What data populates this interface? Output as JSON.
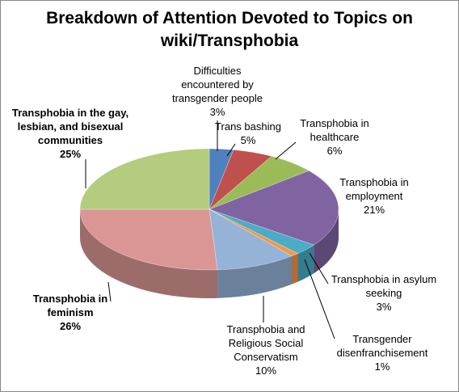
{
  "chart_data": {
    "type": "pie3d",
    "title": "Breakdown of Attention Devoted to Topics on wiki/Transphobia",
    "categories": [
      "Difficulties encountered by transgender people",
      "Trans bashing",
      "Transphobia in healthcare",
      "Transphobia in employment",
      "Transphobia in asylum seeking",
      "Transgender disenfranchisement",
      "Transphobia and Religious Social Conservatism",
      "Transphobia in feminism",
      "Transphobia in the gay, lesbian, and bisexual communities"
    ],
    "values": [
      3,
      5,
      6,
      21,
      3,
      1,
      10,
      26,
      25
    ],
    "value_labels": [
      "3%",
      "5%",
      "6%",
      "21%",
      "3%",
      "1%",
      "10%",
      "26%",
      "25%"
    ],
    "colors": [
      "#4f81bd",
      "#c0504d",
      "#9bbb59",
      "#8064a2",
      "#4bacc6",
      "#f79646",
      "#95b3d7",
      "#d99694",
      "#b3cc7d"
    ]
  }
}
